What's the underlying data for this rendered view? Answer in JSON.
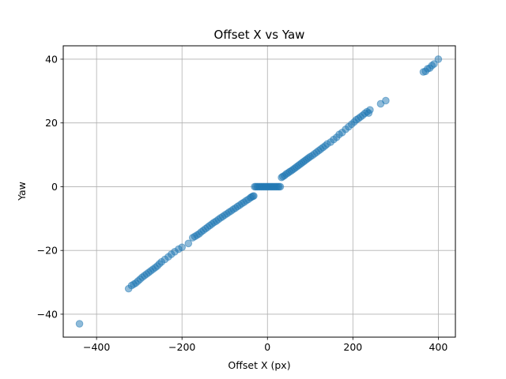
{
  "chart_data": {
    "type": "scatter",
    "title": "Offset X vs Yaw",
    "xlabel": "Offset X (px)",
    "ylabel": "Yaw",
    "xlim": [
      -478,
      440
    ],
    "ylim": [
      -47.2,
      44.2
    ],
    "xticks": [
      -400,
      -200,
      0,
      200,
      400
    ],
    "yticks": [
      -40,
      -20,
      0,
      20,
      40
    ],
    "xtick_labels": [
      "−400",
      "−200",
      "0",
      "200",
      "400"
    ],
    "ytick_labels": [
      "−40",
      "−20",
      "0",
      "20",
      "40"
    ],
    "grid": true,
    "marker_color": "#1f77b4",
    "marker_alpha": 0.5,
    "points": [
      [
        -440,
        -43
      ],
      [
        -325,
        -32
      ],
      [
        -318,
        -31
      ],
      [
        -313,
        -30.6
      ],
      [
        -308,
        -30.2
      ],
      [
        -303,
        -29.6
      ],
      [
        -298,
        -29
      ],
      [
        -293,
        -28.4
      ],
      [
        -288,
        -27.9
      ],
      [
        -283,
        -27.4
      ],
      [
        -278,
        -26.9
      ],
      [
        -273,
        -26.4
      ],
      [
        -268,
        -25.9
      ],
      [
        -263,
        -25.4
      ],
      [
        -258,
        -24.9
      ],
      [
        -253,
        -24.2
      ],
      [
        -248,
        -23.6
      ],
      [
        -240,
        -22.8
      ],
      [
        -232,
        -22
      ],
      [
        -225,
        -21.2
      ],
      [
        -217,
        -20.4
      ],
      [
        -208,
        -19.6
      ],
      [
        -200,
        -19
      ],
      [
        -185,
        -17.8
      ],
      [
        -175,
        -16
      ],
      [
        -170,
        -15.6
      ],
      [
        -165,
        -15.2
      ],
      [
        -160,
        -14.8
      ],
      [
        -155,
        -14.2
      ],
      [
        -150,
        -13.7
      ],
      [
        -145,
        -13.2
      ],
      [
        -140,
        -12.7
      ],
      [
        -135,
        -12.2
      ],
      [
        -130,
        -11.7
      ],
      [
        -125,
        -11.2
      ],
      [
        -120,
        -10.8
      ],
      [
        -115,
        -10.3
      ],
      [
        -110,
        -9.8
      ],
      [
        -105,
        -9.4
      ],
      [
        -100,
        -8.9
      ],
      [
        -95,
        -8.5
      ],
      [
        -90,
        -8
      ],
      [
        -85,
        -7.6
      ],
      [
        -80,
        -7.1
      ],
      [
        -75,
        -6.7
      ],
      [
        -70,
        -6.2
      ],
      [
        -65,
        -5.8
      ],
      [
        -60,
        -5.3
      ],
      [
        -55,
        -4.9
      ],
      [
        -50,
        -4.4
      ],
      [
        -45,
        -4
      ],
      [
        -40,
        -3.5
      ],
      [
        -37,
        -3.2
      ],
      [
        -34,
        -3
      ],
      [
        -32,
        -2.9
      ],
      [
        -30,
        0
      ],
      [
        -27,
        0
      ],
      [
        -24,
        0
      ],
      [
        -21,
        0
      ],
      [
        -18,
        0
      ],
      [
        -15,
        0
      ],
      [
        -12,
        0
      ],
      [
        -9,
        0
      ],
      [
        -6,
        0
      ],
      [
        -3,
        0
      ],
      [
        0,
        0
      ],
      [
        3,
        0
      ],
      [
        6,
        0
      ],
      [
        9,
        0
      ],
      [
        12,
        0
      ],
      [
        15,
        0
      ],
      [
        18,
        0
      ],
      [
        21,
        0
      ],
      [
        24,
        0
      ],
      [
        27,
        0
      ],
      [
        30,
        0
      ],
      [
        33,
        2.9
      ],
      [
        36,
        3.2
      ],
      [
        40,
        3.5
      ],
      [
        44,
        4
      ],
      [
        48,
        4.3
      ],
      [
        52,
        4.7
      ],
      [
        56,
        5
      ],
      [
        60,
        5.4
      ],
      [
        64,
        5.8
      ],
      [
        68,
        6.2
      ],
      [
        72,
        6.6
      ],
      [
        76,
        7
      ],
      [
        80,
        7.4
      ],
      [
        84,
        7.8
      ],
      [
        88,
        8.2
      ],
      [
        92,
        8.6
      ],
      [
        96,
        9
      ],
      [
        100,
        9.4
      ],
      [
        105,
        9.8
      ],
      [
        110,
        10.3
      ],
      [
        115,
        10.8
      ],
      [
        120,
        11.3
      ],
      [
        125,
        11.8
      ],
      [
        130,
        12.3
      ],
      [
        135,
        12.8
      ],
      [
        140,
        13.4
      ],
      [
        148,
        14
      ],
      [
        155,
        14.8
      ],
      [
        162,
        15.5
      ],
      [
        168,
        16.4
      ],
      [
        175,
        17
      ],
      [
        183,
        18
      ],
      [
        190,
        18.8
      ],
      [
        197,
        19.6
      ],
      [
        203,
        20.3
      ],
      [
        208,
        21
      ],
      [
        213,
        21.4
      ],
      [
        218,
        21.9
      ],
      [
        223,
        22.4
      ],
      [
        228,
        23
      ],
      [
        233,
        23.5
      ],
      [
        237,
        23.1
      ],
      [
        240,
        24.1
      ],
      [
        265,
        26
      ],
      [
        277,
        27
      ],
      [
        365,
        36
      ],
      [
        370,
        36.2
      ],
      [
        375,
        37
      ],
      [
        380,
        37.2
      ],
      [
        385,
        38
      ],
      [
        390,
        38.5
      ],
      [
        400,
        40
      ]
    ]
  }
}
